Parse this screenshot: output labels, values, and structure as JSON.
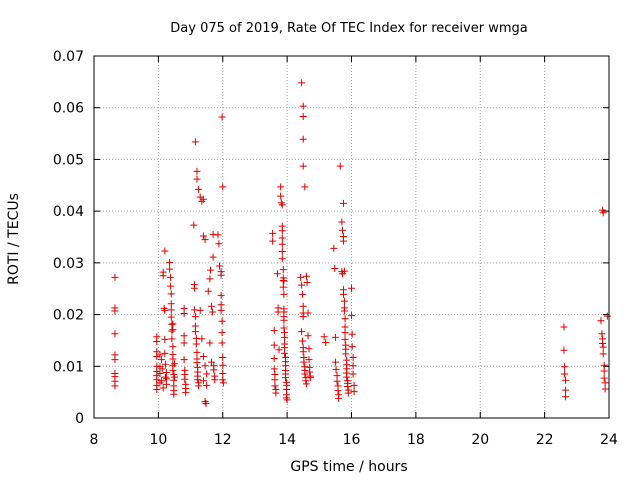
{
  "chart_data": {
    "type": "scatter",
    "title": "Day 075 of 2019, Rate Of TEC Index for receiver wmga",
    "xlabel": "GPS time / hours",
    "ylabel": "ROTI / TECUs",
    "xlim": [
      8,
      24
    ],
    "ylim": [
      0,
      0.07
    ],
    "xticks": [
      8,
      10,
      12,
      14,
      16,
      18,
      20,
      22,
      24
    ],
    "yticks": [
      0,
      0.01,
      0.02,
      0.03,
      0.04,
      0.05,
      0.06,
      0.07
    ],
    "xtick_labels": [
      "8",
      "10",
      "12",
      "14",
      "16",
      "18",
      "20",
      "22",
      "24"
    ],
    "ytick_labels": [
      "0",
      "0.01",
      "0.02",
      "0.03",
      "0.04",
      "0.05",
      "0.06",
      "0.07"
    ],
    "grid": true,
    "marker": "+",
    "color": "#e00000",
    "series": [
      {
        "name": "ROTI",
        "points": [
          [
            8.65,
            0.0272
          ],
          [
            8.65,
            0.0213
          ],
          [
            8.65,
            0.0207
          ],
          [
            8.65,
            0.0163
          ],
          [
            8.65,
            0.0122
          ],
          [
            8.65,
            0.0113
          ],
          [
            8.65,
            0.0086
          ],
          [
            8.65,
            0.008
          ],
          [
            8.65,
            0.0071
          ],
          [
            8.65,
            0.0062
          ],
          [
            9.95,
            0.0157
          ],
          [
            9.95,
            0.0148
          ],
          [
            9.95,
            0.0128
          ],
          [
            9.95,
            0.0119
          ],
          [
            9.95,
            0.01
          ],
          [
            9.95,
            0.009
          ],
          [
            9.95,
            0.0082
          ],
          [
            9.95,
            0.0074
          ],
          [
            9.95,
            0.0063
          ],
          [
            9.95,
            0.0055
          ],
          [
            10.05,
            0.0122
          ],
          [
            10.05,
            0.0099
          ],
          [
            10.05,
            0.0086
          ],
          [
            10.05,
            0.0068
          ],
          [
            10.1,
            0.0113
          ],
          [
            10.1,
            0.0072
          ],
          [
            10.12,
            0.0095
          ],
          [
            10.15,
            0.0058
          ],
          [
            10.15,
            0.0275
          ],
          [
            10.15,
            0.0282
          ],
          [
            10.18,
            0.0212
          ],
          [
            10.2,
            0.0208
          ],
          [
            10.2,
            0.0323
          ],
          [
            10.2,
            0.0152
          ],
          [
            10.2,
            0.0125
          ],
          [
            10.22,
            0.0104
          ],
          [
            10.22,
            0.0079
          ],
          [
            10.25,
            0.0088
          ],
          [
            10.25,
            0.0065
          ],
          [
            10.25,
            0.0076
          ],
          [
            10.35,
            0.0301
          ],
          [
            10.35,
            0.0288
          ],
          [
            10.38,
            0.0272
          ],
          [
            10.38,
            0.0255
          ],
          [
            10.4,
            0.024
          ],
          [
            10.4,
            0.0221
          ],
          [
            10.4,
            0.0209
          ],
          [
            10.4,
            0.0195
          ],
          [
            10.42,
            0.0181
          ],
          [
            10.42,
            0.0168
          ],
          [
            10.42,
            0.0153
          ],
          [
            10.45,
            0.0138
          ],
          [
            10.45,
            0.0123
          ],
          [
            10.45,
            0.0114
          ],
          [
            10.45,
            0.0101
          ],
          [
            10.45,
            0.0092
          ],
          [
            10.48,
            0.0084
          ],
          [
            10.48,
            0.0073
          ],
          [
            10.48,
            0.0062
          ],
          [
            10.48,
            0.0053
          ],
          [
            10.48,
            0.0046
          ],
          [
            10.45,
            0.0182
          ],
          [
            10.45,
            0.0171
          ],
          [
            10.5,
            0.0105
          ],
          [
            10.5,
            0.0079
          ],
          [
            10.8,
            0.0212
          ],
          [
            10.8,
            0.0202
          ],
          [
            10.8,
            0.0159
          ],
          [
            10.8,
            0.0145
          ],
          [
            10.8,
            0.0113
          ],
          [
            10.82,
            0.0092
          ],
          [
            10.82,
            0.0084
          ],
          [
            10.82,
            0.0075
          ],
          [
            10.85,
            0.0065
          ],
          [
            10.85,
            0.0057
          ],
          [
            10.85,
            0.0049
          ],
          [
            11.1,
            0.0373
          ],
          [
            11.12,
            0.0258
          ],
          [
            11.12,
            0.0251
          ],
          [
            11.12,
            0.0209
          ],
          [
            11.15,
            0.0196
          ],
          [
            11.15,
            0.0178
          ],
          [
            11.15,
            0.0167
          ],
          [
            11.18,
            0.0154
          ],
          [
            11.18,
            0.0143
          ],
          [
            11.2,
            0.0127
          ],
          [
            11.2,
            0.0114
          ],
          [
            11.2,
            0.0107
          ],
          [
            11.22,
            0.0098
          ],
          [
            11.22,
            0.0089
          ],
          [
            11.22,
            0.0081
          ],
          [
            11.22,
            0.0074
          ],
          [
            11.25,
            0.0068
          ],
          [
            11.25,
            0.0062
          ],
          [
            11.15,
            0.0534
          ],
          [
            11.2,
            0.0477
          ],
          [
            11.2,
            0.0462
          ],
          [
            11.25,
            0.0442
          ],
          [
            11.3,
            0.0427
          ],
          [
            11.35,
            0.0419
          ],
          [
            11.4,
            0.0423
          ],
          [
            11.4,
            0.0352
          ],
          [
            11.45,
            0.0345
          ],
          [
            11.3,
            0.0208
          ],
          [
            11.35,
            0.0153
          ],
          [
            11.4,
            0.0119
          ],
          [
            11.45,
            0.0101
          ],
          [
            11.4,
            0.0072
          ],
          [
            11.45,
            0.0032
          ],
          [
            11.48,
            0.0028
          ],
          [
            11.5,
            0.0085
          ],
          [
            11.5,
            0.0063
          ],
          [
            11.55,
            0.0245
          ],
          [
            11.6,
            0.0269
          ],
          [
            11.62,
            0.0286
          ],
          [
            11.65,
            0.0216
          ],
          [
            11.68,
            0.0205
          ],
          [
            11.7,
            0.0355
          ],
          [
            11.7,
            0.0311
          ],
          [
            11.72,
            0.0101
          ],
          [
            11.72,
            0.0093
          ],
          [
            11.75,
            0.0081
          ],
          [
            11.75,
            0.0074
          ],
          [
            11.6,
            0.0145
          ],
          [
            11.65,
            0.0108
          ],
          [
            11.85,
            0.0354
          ],
          [
            11.88,
            0.0337
          ],
          [
            11.9,
            0.0294
          ],
          [
            11.95,
            0.0283
          ],
          [
            11.95,
            0.0276
          ],
          [
            11.95,
            0.0237
          ],
          [
            11.98,
            0.0187
          ],
          [
            11.98,
            0.0165
          ],
          [
            11.98,
            0.0145
          ],
          [
            12.0,
            0.0117
          ],
          [
            12.0,
            0.0102
          ],
          [
            12.0,
            0.0086
          ],
          [
            12.0,
            0.0074
          ],
          [
            12.02,
            0.0068
          ],
          [
            11.98,
            0.0582
          ],
          [
            12.0,
            0.0447
          ],
          [
            11.95,
            0.0219
          ],
          [
            11.95,
            0.0208
          ],
          [
            13.55,
            0.0357
          ],
          [
            13.55,
            0.0342
          ],
          [
            13.6,
            0.0169
          ],
          [
            13.6,
            0.0141
          ],
          [
            13.6,
            0.0115
          ],
          [
            13.6,
            0.0095
          ],
          [
            13.62,
            0.0084
          ],
          [
            13.62,
            0.0074
          ],
          [
            13.62,
            0.0062
          ],
          [
            13.65,
            0.0055
          ],
          [
            13.65,
            0.0048
          ],
          [
            13.7,
            0.0279
          ],
          [
            13.72,
            0.0213
          ],
          [
            13.72,
            0.0205
          ],
          [
            13.75,
            0.0132
          ],
          [
            13.8,
            0.0447
          ],
          [
            13.8,
            0.0429
          ],
          [
            13.82,
            0.0416
          ],
          [
            13.85,
            0.0371
          ],
          [
            13.85,
            0.0362
          ],
          [
            13.85,
            0.0348
          ],
          [
            13.85,
            0.0336
          ],
          [
            13.85,
            0.0322
          ],
          [
            13.85,
            0.0308
          ],
          [
            13.88,
            0.0287
          ],
          [
            13.88,
            0.0271
          ],
          [
            13.88,
            0.0266
          ],
          [
            13.88,
            0.0253
          ],
          [
            13.9,
            0.0239
          ],
          [
            13.9,
            0.0211
          ],
          [
            13.9,
            0.0205
          ],
          [
            13.9,
            0.0196
          ],
          [
            13.9,
            0.0189
          ],
          [
            13.9,
            0.0174
          ],
          [
            13.92,
            0.0165
          ],
          [
            13.92,
            0.0156
          ],
          [
            13.92,
            0.0143
          ],
          [
            13.92,
            0.0136
          ],
          [
            13.92,
            0.0125
          ],
          [
            13.95,
            0.0117
          ],
          [
            13.95,
            0.0109
          ],
          [
            13.95,
            0.0101
          ],
          [
            13.95,
            0.0092
          ],
          [
            13.95,
            0.0085
          ],
          [
            13.95,
            0.0078
          ],
          [
            13.98,
            0.0069
          ],
          [
            13.98,
            0.0063
          ],
          [
            13.98,
            0.0055
          ],
          [
            13.98,
            0.0045
          ],
          [
            13.98,
            0.0039
          ],
          [
            14.0,
            0.0035
          ],
          [
            13.85,
            0.0412
          ],
          [
            13.9,
            0.0265
          ],
          [
            14.45,
            0.0648
          ],
          [
            14.5,
            0.0603
          ],
          [
            14.5,
            0.0583
          ],
          [
            14.5,
            0.0539
          ],
          [
            14.5,
            0.0487
          ],
          [
            14.55,
            0.0447
          ],
          [
            14.42,
            0.0272
          ],
          [
            14.45,
            0.0257
          ],
          [
            14.48,
            0.0239
          ],
          [
            14.5,
            0.0216
          ],
          [
            14.5,
            0.0203
          ],
          [
            14.5,
            0.0196
          ],
          [
            14.45,
            0.0167
          ],
          [
            14.48,
            0.0149
          ],
          [
            14.5,
            0.0136
          ],
          [
            14.5,
            0.0128
          ],
          [
            14.52,
            0.0117
          ],
          [
            14.52,
            0.0108
          ],
          [
            14.55,
            0.0099
          ],
          [
            14.55,
            0.0092
          ],
          [
            14.55,
            0.0085
          ],
          [
            14.58,
            0.0078
          ],
          [
            14.58,
            0.0072
          ],
          [
            14.6,
            0.0066
          ],
          [
            14.6,
            0.0274
          ],
          [
            14.62,
            0.0262
          ],
          [
            14.65,
            0.0203
          ],
          [
            14.65,
            0.0159
          ],
          [
            14.68,
            0.0134
          ],
          [
            14.68,
            0.0113
          ],
          [
            14.7,
            0.0098
          ],
          [
            14.7,
            0.0089
          ],
          [
            14.72,
            0.0081
          ],
          [
            14.72,
            0.0078
          ],
          [
            15.15,
            0.0157
          ],
          [
            15.2,
            0.0146
          ],
          [
            15.45,
            0.0328
          ],
          [
            15.48,
            0.0289
          ],
          [
            15.5,
            0.0156
          ],
          [
            15.5,
            0.0108
          ],
          [
            15.52,
            0.0094
          ],
          [
            15.55,
            0.0082
          ],
          [
            15.55,
            0.0071
          ],
          [
            15.58,
            0.0062
          ],
          [
            15.58,
            0.0053
          ],
          [
            15.6,
            0.0045
          ],
          [
            15.6,
            0.0038
          ],
          [
            15.65,
            0.0487
          ],
          [
            15.7,
            0.0379
          ],
          [
            15.72,
            0.0363
          ],
          [
            15.75,
            0.0351
          ],
          [
            15.75,
            0.0342
          ],
          [
            15.7,
            0.0283
          ],
          [
            15.72,
            0.0279
          ],
          [
            15.75,
            0.0248
          ],
          [
            15.75,
            0.0239
          ],
          [
            15.78,
            0.0226
          ],
          [
            15.78,
            0.0213
          ],
          [
            15.78,
            0.0207
          ],
          [
            15.8,
            0.0192
          ],
          [
            15.8,
            0.0176
          ],
          [
            15.8,
            0.0165
          ],
          [
            15.8,
            0.0152
          ],
          [
            15.82,
            0.0141
          ],
          [
            15.82,
            0.0133
          ],
          [
            15.82,
            0.0124
          ],
          [
            15.85,
            0.0112
          ],
          [
            15.85,
            0.0103
          ],
          [
            15.85,
            0.0095
          ],
          [
            15.85,
            0.0087
          ],
          [
            15.85,
            0.0079
          ],
          [
            15.88,
            0.0072
          ],
          [
            15.88,
            0.0067
          ],
          [
            15.88,
            0.0061
          ],
          [
            15.9,
            0.0054
          ],
          [
            15.9,
            0.0048
          ],
          [
            15.75,
            0.0415
          ],
          [
            15.78,
            0.0284
          ],
          [
            16.0,
            0.0251
          ],
          [
            16.0,
            0.0198
          ],
          [
            16.02,
            0.0162
          ],
          [
            16.02,
            0.0138
          ],
          [
            16.05,
            0.0117
          ],
          [
            16.05,
            0.0101
          ],
          [
            16.05,
            0.0085
          ],
          [
            16.08,
            0.0063
          ],
          [
            16.08,
            0.0051
          ],
          [
            22.6,
            0.0176
          ],
          [
            22.6,
            0.0131
          ],
          [
            22.62,
            0.0099
          ],
          [
            22.62,
            0.0085
          ],
          [
            22.65,
            0.0073
          ],
          [
            22.65,
            0.0054
          ],
          [
            22.65,
            0.0041
          ],
          [
            23.8,
            0.0402
          ],
          [
            23.82,
            0.0397
          ],
          [
            23.75,
            0.0188
          ],
          [
            23.78,
            0.0163
          ],
          [
            23.8,
            0.0153
          ],
          [
            23.8,
            0.0144
          ],
          [
            23.82,
            0.0137
          ],
          [
            23.82,
            0.0124
          ],
          [
            23.85,
            0.0102
          ],
          [
            23.85,
            0.0091
          ],
          [
            23.85,
            0.0077
          ],
          [
            23.88,
            0.0068
          ],
          [
            23.88,
            0.0056
          ],
          [
            23.95,
            0.0197
          ]
        ]
      }
    ]
  }
}
